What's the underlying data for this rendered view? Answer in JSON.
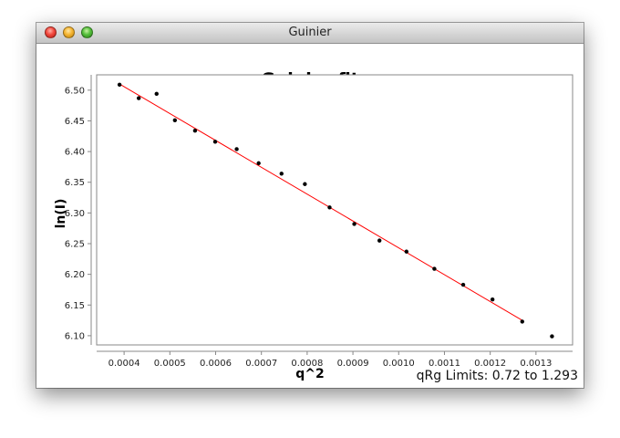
{
  "window": {
    "title": "Guinier"
  },
  "status": {
    "qrg_limits": "qRg Limits: 0.72 to 1.293"
  },
  "chart_data": {
    "type": "scatter",
    "title": "Guinier fit",
    "xlabel": "q^2",
    "ylabel": "ln(I)",
    "xlim": [
      0.00034,
      0.00138
    ],
    "ylim": [
      6.085,
      6.525
    ],
    "xticks": [
      "0.0004",
      "0.0005",
      "0.0006",
      "0.0007",
      "0.0008",
      "0.0009",
      "0.0010",
      "0.0011",
      "0.0012",
      "0.0013"
    ],
    "yticks": [
      "6.10",
      "6.15",
      "6.20",
      "6.25",
      "6.30",
      "6.35",
      "6.40",
      "6.45",
      "6.50"
    ],
    "grid": false,
    "series": [
      {
        "kind": "points",
        "color": "#000000",
        "points": [
          [
            0.00039,
            6.509
          ],
          [
            0.000432,
            6.487
          ],
          [
            0.000471,
            6.494
          ],
          [
            0.000511,
            6.451
          ],
          [
            0.000555,
            6.434
          ],
          [
            0.000599,
            6.416
          ],
          [
            0.000646,
            6.404
          ],
          [
            0.000694,
            6.381
          ],
          [
            0.000744,
            6.364
          ],
          [
            0.000795,
            6.347
          ],
          [
            0.000849,
            6.309
          ],
          [
            0.000903,
            6.282
          ],
          [
            0.000958,
            6.255
          ],
          [
            0.001017,
            6.237
          ],
          [
            0.001078,
            6.209
          ],
          [
            0.001141,
            6.183
          ],
          [
            0.001205,
            6.159
          ],
          [
            0.00127,
            6.123
          ],
          [
            0.001335,
            6.099
          ]
        ]
      },
      {
        "kind": "fit-line",
        "color": "#ff0000",
        "points": [
          [
            0.00039,
            6.51
          ],
          [
            0.00127,
            6.125
          ]
        ]
      }
    ]
  }
}
